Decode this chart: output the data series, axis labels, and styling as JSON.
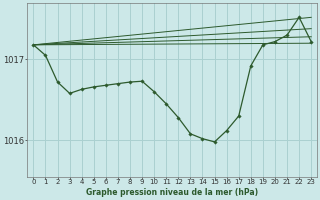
{
  "title": "Graphe pression niveau de la mer (hPa)",
  "background_color": "#cce8e8",
  "grid_color": "#aad0d0",
  "line_color": "#2d5a2d",
  "marker_color": "#2d5a2d",
  "xlim": [
    -0.5,
    23.5
  ],
  "ylim": [
    1015.55,
    1017.7
  ],
  "yticks": [
    1016,
    1017
  ],
  "xticks": [
    0,
    1,
    2,
    3,
    4,
    5,
    6,
    7,
    8,
    9,
    10,
    11,
    12,
    13,
    14,
    15,
    16,
    17,
    18,
    19,
    20,
    21,
    22,
    23
  ],
  "main_series": [
    1017.18,
    1017.05,
    1016.72,
    1016.58,
    1016.63,
    1016.66,
    1016.68,
    1016.7,
    1016.72,
    1016.73,
    1016.6,
    1016.45,
    1016.28,
    1016.08,
    1016.02,
    1015.98,
    1016.12,
    1016.3,
    1016.92,
    1017.18,
    1017.22,
    1017.3,
    1017.52,
    1017.22
  ],
  "trend_lines": [
    {
      "x": [
        0,
        23
      ],
      "y": [
        1017.18,
        1017.52
      ]
    },
    {
      "x": [
        0,
        23
      ],
      "y": [
        1017.18,
        1017.38
      ]
    },
    {
      "x": [
        0,
        23
      ],
      "y": [
        1017.18,
        1017.28
      ]
    },
    {
      "x": [
        0,
        23
      ],
      "y": [
        1017.18,
        1017.2
      ]
    }
  ]
}
